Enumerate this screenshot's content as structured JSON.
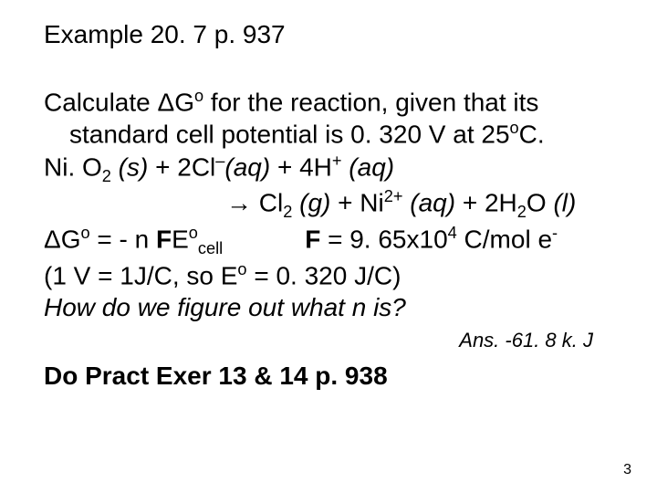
{
  "title": "Example 20. 7 p. 937",
  "line1a": "Calculate ΔG",
  "line1b": " for the reaction, given that its",
  "line2a": "standard cell potential is 0. 320 V at 25",
  "line2b": "C.",
  "line3a": "Ni. O",
  "line3b": " (s)",
  "line3c": " + 2Cl",
  "line3d": "(aq)",
  "line3e": " + 4H",
  "line3f": " (aq)",
  "line4arrow": "→",
  "line4a": " Cl",
  "line4b": " (g)",
  "line4c": " + Ni",
  "line4d": " (aq)",
  "line4e": " + 2H",
  "line4f": "O ",
  "line4g": "(l)",
  "line5a": "ΔG",
  "line5b": " = - n ",
  "line5c": "F",
  "line5d": "E",
  "line5f": "F",
  "line5g": " = 9. 65x10",
  "line5h": " C/mol e",
  "line6a": " (1 V = 1J/C, so E",
  "line6b": " = 0. 320 J/C)",
  "line7": "How do we figure out what n is?",
  "ans": "Ans. -61. 8 k. J",
  "pract": "Do Pract Exer 13 & 14 p. 938",
  "pagenum": "3",
  "sup_o": "o",
  "sub_2": "2",
  "sup_minus": "–",
  "sup_plus": "+",
  "sup_2plus": "2+",
  "sub_cell": "cell",
  "sup_4": "4",
  "sup_neg": "-"
}
